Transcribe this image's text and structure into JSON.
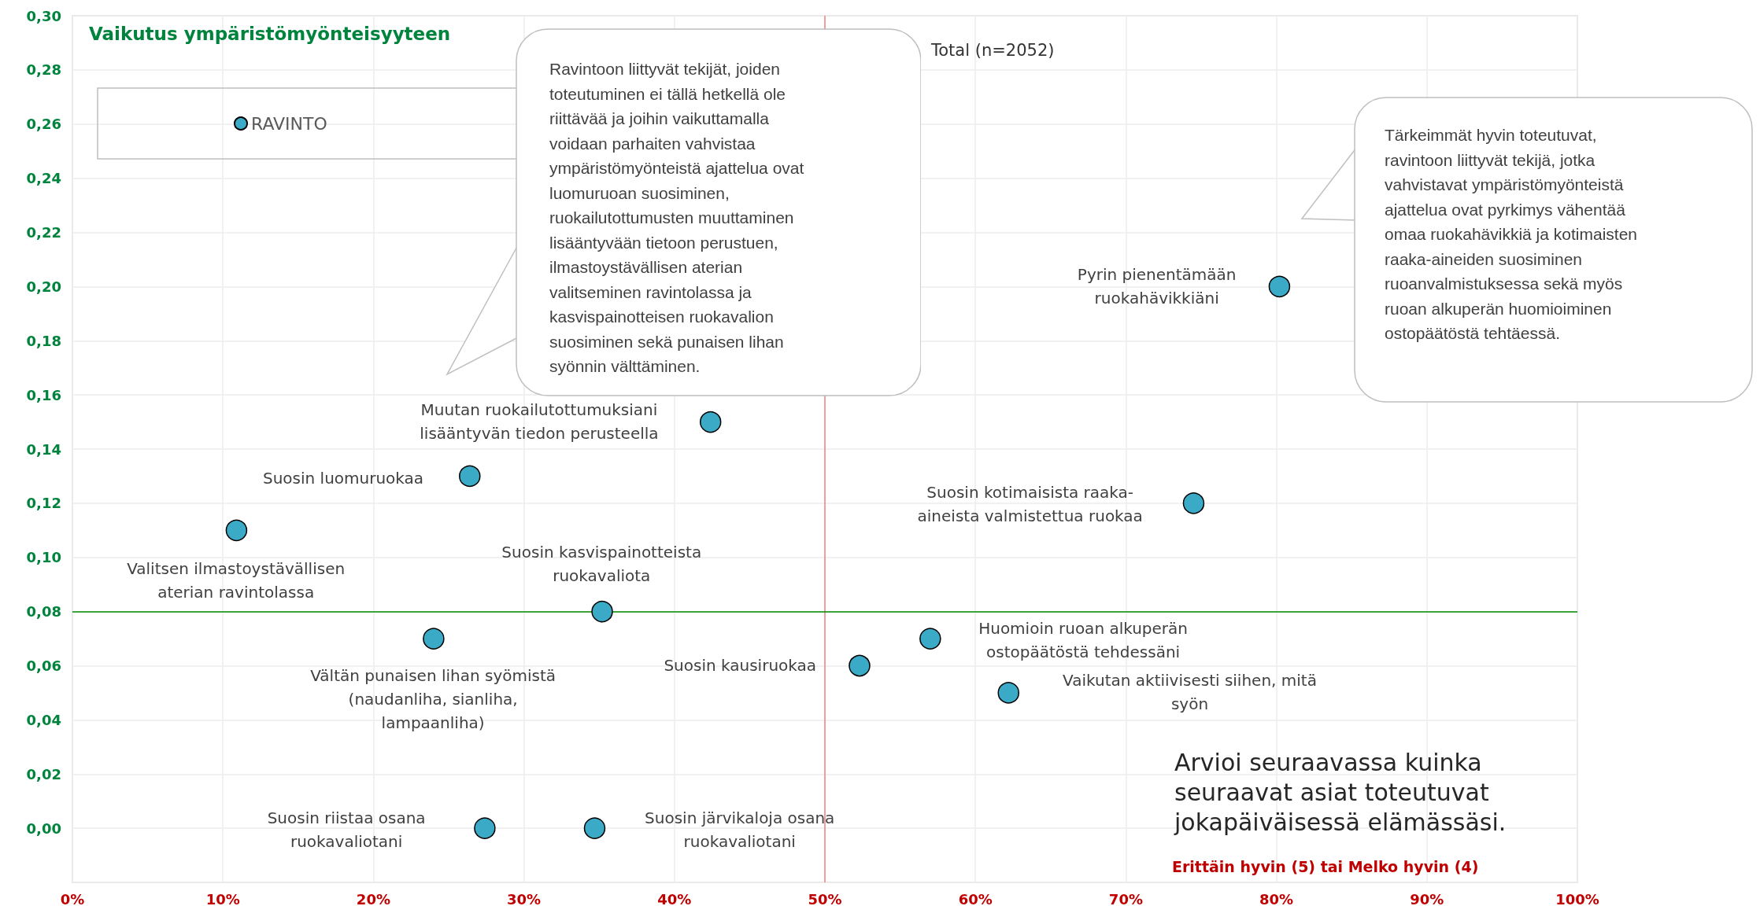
{
  "chart_data": {
    "type": "scatter",
    "title": "Vaikutus ympäristömyönteisyyteen",
    "x": [
      80.2,
      42.4,
      26.4,
      10.9,
      74.5,
      35.2,
      24.0,
      57.0,
      52.3,
      62.2,
      27.4,
      34.7
    ],
    "series": [
      {
        "name": "RAVINTO",
        "color": "#3baac6",
        "values": [
          0.2,
          0.15,
          0.13,
          0.11,
          0.12,
          0.08,
          0.07,
          0.07,
          0.06,
          0.05,
          0.0,
          0.0
        ]
      }
    ],
    "xlim": [
      0,
      100
    ],
    "xticks": [
      {
        "value": 0,
        "label": "0%"
      },
      {
        "value": 10,
        "label": "10%"
      },
      {
        "value": 20,
        "label": "20%"
      },
      {
        "value": 30,
        "label": "30%"
      },
      {
        "value": 40,
        "label": "40%"
      },
      {
        "value": 50,
        "label": "50%"
      },
      {
        "value": 60,
        "label": "60%"
      },
      {
        "value": 70,
        "label": "70%"
      },
      {
        "value": 80,
        "label": "80%"
      },
      {
        "value": 90,
        "label": "90%"
      },
      {
        "value": 100,
        "label": "100%"
      }
    ],
    "ylim": [
      -0.02,
      0.3
    ],
    "yticks": [
      {
        "value": 0,
        "label": "0,00"
      },
      {
        "value": 0.02,
        "label": "0,02"
      },
      {
        "value": 0.04,
        "label": "0,04"
      },
      {
        "value": 0.06,
        "label": "0,06"
      },
      {
        "value": 0.08,
        "label": "0,08"
      },
      {
        "value": 0.1,
        "label": "0,10"
      },
      {
        "value": 0.12,
        "label": "0,12"
      },
      {
        "value": 0.14,
        "label": "0,14"
      },
      {
        "value": 0.16,
        "label": "0,16"
      },
      {
        "value": 0.18,
        "label": "0,18"
      },
      {
        "value": 0.2,
        "label": "0,20"
      },
      {
        "value": 0.22,
        "label": "0,22"
      },
      {
        "value": 0.24,
        "label": "0,24"
      },
      {
        "value": 0.26,
        "label": "0,26"
      },
      {
        "value": 0.28,
        "label": "0,28"
      },
      {
        "value": 0.3,
        "label": "0,30"
      }
    ],
    "ref_lines": [
      {
        "axis": "x",
        "value": 50,
        "color": "#f08080"
      },
      {
        "axis": "y",
        "value": 0.08,
        "color": "#008a00"
      }
    ],
    "annotations": [
      "Pyrin pienentämään\nruokahävikkiäni",
      "Muutan ruokailutottumuksiani\nlisääntyvän tiedon perusteella",
      "Suosin luomuruokaa",
      "Valitsen ilmastoystävällisen\naterian ravintolassa",
      "Suosin kotimaisista raaka-\naineista valmistettua ruokaa",
      "Suosin kasvispainotteista\nruokavaliota",
      "Vältän punaisen lihan syömistä\n(naudanliha, sianliha,\nlampaanliha)",
      "Huomioin ruoan alkuperän\nostopäätöstä tehdessäni",
      "Suosin kausiruokaa",
      "Vaikutan aktiivisesti siihen, mitä\nsyön",
      "Suosin riistaa osana\nruokavaliotani",
      "Suosin järvikaloja osana\nruokavaliotani",
      "Total (n=2052)",
      "Ravintoon liittyvät tekijät, joiden\ntoteutuminen ei tällä hetkellä ole\nriittävää ja joihin vaikuttamalla\nvoidaan parhaiten vahvistaa\nympäristömyönteistä ajattelua ovat\nluomuruoan suosiminen,\nruokailutottumusten muuttaminen\nlisääntyvään tietoon perustuen,\nilmastoystävällisen aterian\nvalitseminen ravintolassa ja\nkasvispainotteisen ruokavalion\nsuosiminen sekä punaisen lihan\nsyönnin välttäminen.",
      "Tärkeimmät hyvin toteutuvat,\nravintoon liittyvät tekijä, jotka\nvahvistavat ympäristömyönteistä\najattelua ovat pyrkimys vähentää\nomaa ruokahävikkiä ja kotimaisten\nraaka-aineiden suosiminen\nruoanvalmistuksessa sekä myös\nruoan alkuperän huomioiminen\nostopäätöstä tehtäessä.",
      "Arvioi seuraavassa kuinka\nseuraavat asiat toteutuvat\njokapäiväisessä elämässäsi.",
      "Erittäin hyvin (5) tai Melko hyvin (4)"
    ],
    "grid": true,
    "legend": "top left",
    "marker": "circle"
  }
}
